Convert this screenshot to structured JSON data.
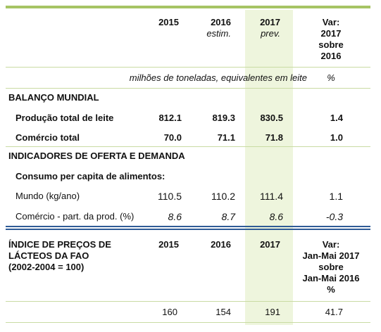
{
  "header": {
    "years": [
      {
        "year": "2015",
        "note": ""
      },
      {
        "year": "2016",
        "note": "estim."
      },
      {
        "year": "2017",
        "note": "prev."
      }
    ],
    "var_lines": [
      "Var:",
      "2017",
      "sobre",
      "2016"
    ]
  },
  "units": {
    "left": "milhões de toneladas, equivalentes em leite",
    "right": "%"
  },
  "balanco": {
    "title": "BALANÇO MUNDIAL",
    "rows": [
      {
        "label": "Produção total de leite",
        "values": [
          "812.1",
          "819.3",
          "830.5"
        ],
        "var": "1.4"
      },
      {
        "label": "Comércio total",
        "values": [
          "70.0",
          "71.1",
          "71.8"
        ],
        "var": "1.0"
      }
    ]
  },
  "indicadores": {
    "title": "INDICADORES DE OFERTA E DEMANDA",
    "subtitle": "Consumo per capita de alimentos:",
    "rows": [
      {
        "label": "Mundo (kg/ano)",
        "values": [
          "110.5",
          "110.2",
          "111.4"
        ],
        "var": "1.1"
      },
      {
        "label": "Comércio - part. da prod. (%)",
        "values": [
          "8.6",
          "8.7",
          "8.6"
        ],
        "var": "-0.3"
      }
    ]
  },
  "indice": {
    "title_lines": [
      "ÍNDICE DE PREÇOS DE",
      "LÁCTEOS DA FAO",
      "(2002-2004 = 100)"
    ],
    "years": [
      "2015",
      "2016",
      "2017"
    ],
    "var_lines": [
      "Var:",
      "Jan-Mai 2017",
      "sobre",
      "Jan-Mai 2016",
      "%"
    ],
    "values": [
      "160",
      "154",
      "191"
    ],
    "var": "41.7"
  }
}
